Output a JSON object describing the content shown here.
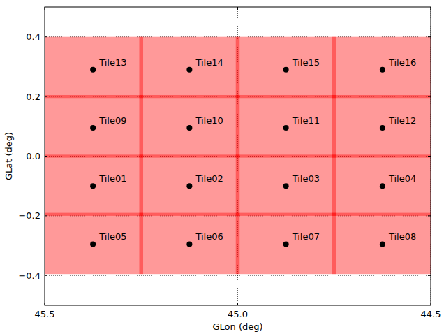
{
  "chart_data": {
    "type": "scatter",
    "xlabel": "GLon (deg)",
    "ylabel": "GLat (deg)",
    "xlim": [
      45.5,
      44.5
    ],
    "ylim": [
      -0.5,
      0.5
    ],
    "xticks": [
      45.5,
      {
        "value": 45,
        "label": "45.0"
      },
      44.5
    ],
    "yticks": [
      {
        "value": -0.4,
        "label": "−0.4"
      },
      {
        "value": -0.2,
        "label": "−0.2"
      },
      {
        "value": 0,
        "label": "0.0"
      },
      0.2,
      0.4
    ],
    "grid": true,
    "marker": "circle",
    "color": "#000000",
    "labels": [
      "Tile01",
      "Tile02",
      "Tile03",
      "Tile04",
      "Tile05",
      "Tile06",
      "Tile07",
      "Tile08",
      "Tile09",
      "Tile10",
      "Tile11",
      "Tile12",
      "Tile13",
      "Tile14",
      "Tile15",
      "Tile16"
    ],
    "x": [
      45.375,
      45.125,
      44.875,
      44.625,
      45.375,
      45.125,
      44.875,
      44.625,
      45.375,
      45.125,
      44.875,
      44.625,
      45.375,
      45.125,
      44.875,
      44.625
    ],
    "y": [
      -0.1,
      -0.1,
      -0.1,
      -0.1,
      -0.295,
      -0.295,
      -0.295,
      -0.295,
      0.095,
      0.095,
      0.095,
      0.095,
      0.29,
      0.29,
      0.29,
      0.29
    ],
    "region_color": "#ff0000",
    "lon": [
      [
        45.5,
        45.245
      ],
      [
        45.255,
        44.995
      ],
      [
        45.005,
        44.745
      ],
      [
        44.755,
        44.5
      ],
      [
        45.5,
        45.245
      ],
      [
        45.255,
        44.995
      ],
      [
        45.005,
        44.745
      ],
      [
        44.755,
        44.5
      ],
      [
        45.5,
        45.245
      ],
      [
        45.255,
        44.995
      ],
      [
        45.005,
        44.745
      ],
      [
        44.755,
        44.5
      ],
      [
        45.5,
        45.245
      ],
      [
        45.255,
        44.995
      ],
      [
        45.005,
        44.745
      ],
      [
        44.755,
        44.5
      ]
    ],
    "lat": [
      [
        -0.2,
        0.005
      ],
      [
        -0.2,
        0.005
      ],
      [
        -0.2,
        0.005
      ],
      [
        -0.2,
        0.005
      ],
      [
        -0.395,
        -0.19
      ],
      [
        -0.395,
        -0.19
      ],
      [
        -0.395,
        -0.19
      ],
      [
        -0.395,
        -0.19
      ],
      [
        -0.005,
        0.205
      ],
      [
        -0.005,
        0.205
      ],
      [
        -0.005,
        0.205
      ],
      [
        -0.005,
        0.205
      ],
      [
        0.195,
        0.4
      ],
      [
        0.195,
        0.4
      ],
      [
        0.195,
        0.4
      ],
      [
        0.195,
        0.4
      ]
    ]
  }
}
